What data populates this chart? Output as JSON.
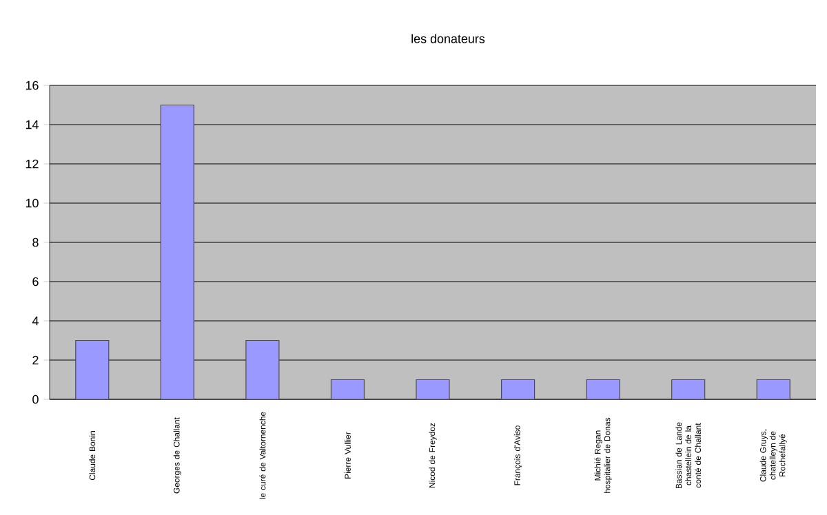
{
  "chart_data": {
    "type": "bar",
    "title": "les donateurs",
    "categories": [
      "Claude Bonin",
      "Georges de Challant",
      "le curé de Valtornenche",
      "Pierre Vullier",
      "Nicod de Freydoz",
      "François d'Aviso",
      "Michié Regan hospitalier de Donas",
      "Bassian de Lande chastellein de la conté de Challant",
      "Claude Gruys, chatelleyn de Rochefallyé"
    ],
    "values": [
      3,
      15,
      3,
      1,
      1,
      1,
      1,
      1,
      1
    ],
    "color": "#9999ff",
    "ylim": [
      0,
      16
    ],
    "yticks": [
      0,
      2,
      4,
      6,
      8,
      10,
      12,
      14,
      16
    ],
    "grid": "y"
  }
}
